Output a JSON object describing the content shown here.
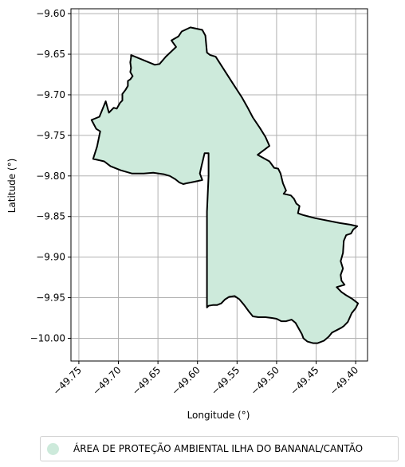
{
  "chart_data": {
    "type": "map",
    "xlabel": "Longitude (°)",
    "ylabel": "Latitude (°)",
    "xlim": [
      -49.76,
      -49.385
    ],
    "ylim": [
      -10.028,
      -9.594
    ],
    "xticks": [
      -49.75,
      -49.7,
      -49.65,
      -49.6,
      -49.55,
      -49.5,
      -49.45,
      -49.4
    ],
    "xtick_labels": [
      "−49.75",
      "−49.70",
      "−49.65",
      "−49.60",
      "−49.55",
      "−49.50",
      "−49.45",
      "−49.40"
    ],
    "yticks": [
      -9.6,
      -9.65,
      -9.7,
      -9.75,
      -9.8,
      -9.85,
      -9.9,
      -9.95,
      -10.0
    ],
    "ytick_labels": [
      "−9.60",
      "−9.65",
      "−9.70",
      "−9.75",
      "−9.80",
      "−9.85",
      "−9.90",
      "−9.95",
      "−10.00"
    ],
    "grid": true,
    "legend_position": "bottom",
    "series": [
      {
        "name": "ÁREA DE PROTEÇÃO AMBIENTAL ILHA DO BANANAL/CANTÃO",
        "color": "#cdeadb",
        "edge_color": "#000000",
        "polygon": [
          [
            -49.609,
            -9.617
          ],
          [
            -49.594,
            -9.62
          ],
          [
            -49.59,
            -9.627
          ],
          [
            -49.588,
            -9.648
          ],
          [
            -49.584,
            -9.651
          ],
          [
            -49.577,
            -9.653
          ],
          [
            -49.556,
            -9.685
          ],
          [
            -49.544,
            -9.703
          ],
          [
            -49.537,
            -9.715
          ],
          [
            -49.53,
            -9.728
          ],
          [
            -49.521,
            -9.741
          ],
          [
            -49.514,
            -9.752
          ],
          [
            -49.509,
            -9.763
          ],
          [
            -49.524,
            -9.774
          ],
          [
            -49.509,
            -9.782
          ],
          [
            -49.503,
            -9.79
          ],
          [
            -49.498,
            -9.791
          ],
          [
            -49.495,
            -9.797
          ],
          [
            -49.492,
            -9.809
          ],
          [
            -49.488,
            -9.818
          ],
          [
            -49.491,
            -9.822
          ],
          [
            -49.482,
            -9.824
          ],
          [
            -49.48,
            -9.826
          ],
          [
            -49.478,
            -9.828
          ],
          [
            -49.475,
            -9.834
          ],
          [
            -49.471,
            -9.837
          ],
          [
            -49.473,
            -9.846
          ],
          [
            -49.467,
            -9.848
          ],
          [
            -49.451,
            -9.852
          ],
          [
            -49.42,
            -9.858
          ],
          [
            -49.407,
            -9.86
          ],
          [
            -49.398,
            -9.862
          ],
          [
            -49.403,
            -9.866
          ],
          [
            -49.406,
            -9.871
          ],
          [
            -49.412,
            -9.873
          ],
          [
            -49.415,
            -9.88
          ],
          [
            -49.416,
            -9.895
          ],
          [
            -49.419,
            -9.905
          ],
          [
            -49.416,
            -9.914
          ],
          [
            -49.419,
            -9.922
          ],
          [
            -49.418,
            -9.929
          ],
          [
            -49.414,
            -9.934
          ],
          [
            -49.424,
            -9.937
          ],
          [
            -49.418,
            -9.943
          ],
          [
            -49.412,
            -9.947
          ],
          [
            -49.405,
            -9.951
          ],
          [
            -49.397,
            -9.957
          ],
          [
            -49.4,
            -9.963
          ],
          [
            -49.405,
            -9.969
          ],
          [
            -49.41,
            -9.98
          ],
          [
            -49.415,
            -9.985
          ],
          [
            -49.418,
            -9.987
          ],
          [
            -49.424,
            -9.99
          ],
          [
            -49.43,
            -9.993
          ],
          [
            -49.434,
            -9.998
          ],
          [
            -49.44,
            -10.003
          ],
          [
            -49.448,
            -10.006
          ],
          [
            -49.454,
            -10.006
          ],
          [
            -49.461,
            -10.004
          ],
          [
            -49.466,
            -10.0
          ],
          [
            -49.468,
            -9.995
          ],
          [
            -49.472,
            -9.988
          ],
          [
            -49.476,
            -9.981
          ],
          [
            -49.481,
            -9.977
          ],
          [
            -49.488,
            -9.979
          ],
          [
            -49.494,
            -9.979
          ],
          [
            -49.5,
            -9.976
          ],
          [
            -49.506,
            -9.975
          ],
          [
            -49.514,
            -9.974
          ],
          [
            -49.523,
            -9.974
          ],
          [
            -49.53,
            -9.973
          ],
          [
            -49.535,
            -9.967
          ],
          [
            -49.541,
            -9.959
          ],
          [
            -49.547,
            -9.952
          ],
          [
            -49.553,
            -9.948
          ],
          [
            -49.56,
            -9.949
          ],
          [
            -49.565,
            -9.952
          ],
          [
            -49.57,
            -9.957
          ],
          [
            -49.575,
            -9.959
          ],
          [
            -49.58,
            -9.959
          ],
          [
            -49.586,
            -9.96
          ],
          [
            -49.588,
            -9.962
          ],
          [
            -49.588,
            -9.905
          ],
          [
            -49.588,
            -9.844
          ],
          [
            -49.586,
            -9.8
          ],
          [
            -49.586,
            -9.772
          ],
          [
            -49.591,
            -9.772
          ],
          [
            -49.595,
            -9.788
          ],
          [
            -49.597,
            -9.797
          ],
          [
            -49.594,
            -9.805
          ],
          [
            -49.603,
            -9.807
          ],
          [
            -49.608,
            -9.808
          ],
          [
            -49.614,
            -9.809
          ],
          [
            -49.618,
            -9.81
          ],
          [
            -49.623,
            -9.808
          ],
          [
            -49.628,
            -9.804
          ],
          [
            -49.635,
            -9.8
          ],
          [
            -49.642,
            -9.798
          ],
          [
            -49.656,
            -9.796
          ],
          [
            -49.668,
            -9.797
          ],
          [
            -49.683,
            -9.797
          ],
          [
            -49.697,
            -9.793
          ],
          [
            -49.71,
            -9.788
          ],
          [
            -49.718,
            -9.782
          ],
          [
            -49.732,
            -9.779
          ],
          [
            -49.727,
            -9.764
          ],
          [
            -49.723,
            -9.745
          ],
          [
            -49.728,
            -9.742
          ],
          [
            -49.734,
            -9.731
          ],
          [
            -49.724,
            -9.727
          ],
          [
            -49.716,
            -9.708
          ],
          [
            -49.712,
            -9.722
          ],
          [
            -49.706,
            -9.716
          ],
          [
            -49.702,
            -9.717
          ],
          [
            -49.698,
            -9.71
          ],
          [
            -49.695,
            -9.707
          ],
          [
            -49.695,
            -9.699
          ],
          [
            -49.691,
            -9.694
          ],
          [
            -49.688,
            -9.689
          ],
          [
            -49.688,
            -9.683
          ],
          [
            -49.685,
            -9.681
          ],
          [
            -49.682,
            -9.677
          ],
          [
            -49.685,
            -9.672
          ],
          [
            -49.684,
            -9.667
          ],
          [
            -49.685,
            -9.66
          ],
          [
            -49.684,
            -9.654
          ],
          [
            -49.684,
            -9.651
          ],
          [
            -49.669,
            -9.657
          ],
          [
            -49.654,
            -9.663
          ],
          [
            -49.648,
            -9.662
          ],
          [
            -49.64,
            -9.653
          ],
          [
            -49.627,
            -9.641
          ],
          [
            -49.633,
            -9.633
          ],
          [
            -49.624,
            -9.628
          ],
          [
            -49.62,
            -9.622
          ],
          [
            -49.609,
            -9.617
          ]
        ]
      }
    ]
  }
}
